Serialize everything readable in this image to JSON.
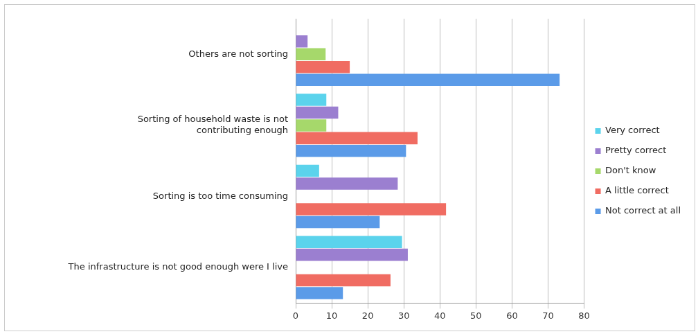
{
  "chart_data": {
    "type": "bar",
    "orientation": "horizontal",
    "categories": [
      "Others are not sorting",
      "Sorting of household waste is not contributing enough",
      "Sorting is too time consuming",
      "The infrastructure is not good enough were I live"
    ],
    "series": [
      {
        "name": "Very correct",
        "color": "#5bd3ec",
        "values": [
          null,
          8.5,
          6.5,
          29.5
        ]
      },
      {
        "name": "Pretty correct",
        "color": "#9b7fd0",
        "values": [
          3.3,
          11.8,
          28.3,
          31.1
        ]
      },
      {
        "name": "Don't know",
        "color": "#a6d86b",
        "values": [
          8.3,
          8.5,
          null,
          null
        ]
      },
      {
        "name": "A little correct",
        "color": "#f06c62",
        "values": [
          15,
          33.8,
          41.7,
          26.3
        ]
      },
      {
        "name": "Not correct at all",
        "color": "#5b9be8",
        "values": [
          73.2,
          30.6,
          23.3,
          13.1
        ]
      }
    ],
    "xlim": [
      0,
      80
    ],
    "xticks": [
      0,
      10,
      20,
      30,
      40,
      50,
      60,
      70,
      80
    ],
    "grid": "x",
    "legend": "right"
  }
}
